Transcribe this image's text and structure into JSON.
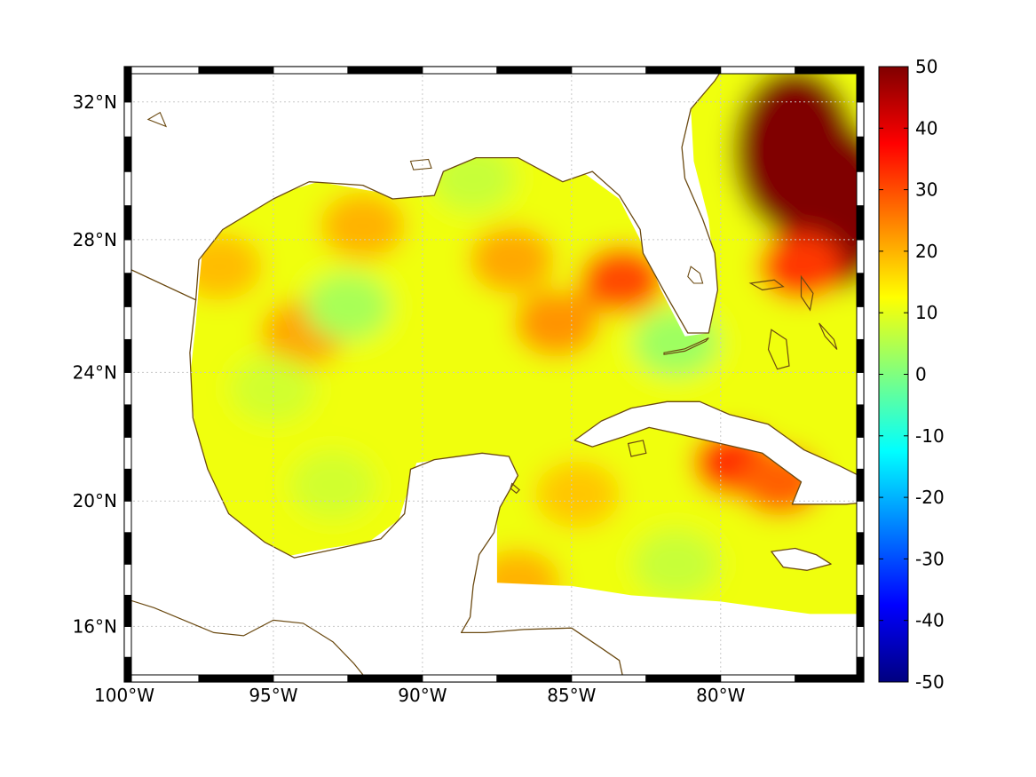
{
  "map": {
    "projection": "mercator",
    "lon_range": [
      -100,
      -75.2
    ],
    "lat_range": [
      14.2,
      33.0
    ],
    "grid": true,
    "frame_style": "black-white checker"
  },
  "axes": {
    "x_ticks": [
      {
        "value": -100,
        "label": "100°W"
      },
      {
        "value": -95,
        "label": "95°W"
      },
      {
        "value": -90,
        "label": "90°W"
      },
      {
        "value": -85,
        "label": "85°W"
      },
      {
        "value": -80,
        "label": "80°W"
      }
    ],
    "y_ticks": [
      {
        "value": 32,
        "label": "32°N"
      },
      {
        "value": 28,
        "label": "28°N"
      },
      {
        "value": 24,
        "label": "24°N"
      },
      {
        "value": 20,
        "label": "20°N"
      },
      {
        "value": 16,
        "label": "16°N"
      }
    ]
  },
  "colorbar": {
    "colormap": "jet",
    "min": -50,
    "max": 50,
    "ticks": [
      {
        "value": 50,
        "label": "50"
      },
      {
        "value": 40,
        "label": "40"
      },
      {
        "value": 30,
        "label": "30"
      },
      {
        "value": 20,
        "label": "20"
      },
      {
        "value": 10,
        "label": "10"
      },
      {
        "value": 0,
        "label": "0"
      },
      {
        "value": -10,
        "label": "-10"
      },
      {
        "value": -20,
        "label": "-20"
      },
      {
        "value": -30,
        "label": "-30"
      },
      {
        "value": -40,
        "label": "-40"
      },
      {
        "value": -50,
        "label": "-50"
      }
    ]
  },
  "colors": {
    "coastline": "#6b4a12",
    "background": "#ffffff",
    "grid": "#c8c8c8"
  },
  "field": {
    "base_value": 11,
    "anomalies": [
      {
        "name": "florida-current-high",
        "lon": -77.5,
        "lat": 30.6,
        "value": 60
      },
      {
        "name": "gulfstream-east",
        "lon": -76.2,
        "lat": 29.0,
        "value": 55
      },
      {
        "name": "bahamas-east",
        "lon": -77.3,
        "lat": 27.2,
        "value": 32
      },
      {
        "name": "loop-current-west-florida",
        "lon": -83.3,
        "lat": 26.8,
        "value": 30
      },
      {
        "name": "central-gulf-north",
        "lon": -87.0,
        "lat": 27.4,
        "value": 21
      },
      {
        "name": "central-gulf",
        "lon": -85.5,
        "lat": 25.5,
        "value": 23
      },
      {
        "name": "northwest-gulf",
        "lon": -92.0,
        "lat": 28.4,
        "value": 20
      },
      {
        "name": "western-gulf-band",
        "lon": -94.0,
        "lat": 25.2,
        "value": 21
      },
      {
        "name": "texas-shelf",
        "lon": -96.8,
        "lat": 27.2,
        "value": 19
      },
      {
        "name": "cuba-south-high",
        "lon": -79.5,
        "lat": 21.2,
        "value": 33
      },
      {
        "name": "cuba-east-high",
        "lon": -78.0,
        "lat": 20.6,
        "value": 28
      },
      {
        "name": "caribbean-west",
        "lon": -86.8,
        "lat": 17.4,
        "value": 20
      },
      {
        "name": "yucatan-channel",
        "lon": -84.8,
        "lat": 20.2,
        "value": 18
      },
      {
        "name": "west-gulf-low",
        "lon": -95.0,
        "lat": 23.5,
        "value": 8
      },
      {
        "name": "florida-bay-low",
        "lon": -81.5,
        "lat": 24.9,
        "value": 3
      },
      {
        "name": "central-low",
        "lon": -92.5,
        "lat": 26.0,
        "value": 4
      },
      {
        "name": "campeche-low",
        "lon": -93.0,
        "lat": 20.5,
        "value": 8
      },
      {
        "name": "northern-gulf-low",
        "lon": -88.3,
        "lat": 29.8,
        "value": 7
      },
      {
        "name": "caribbean-south-low",
        "lon": -81.5,
        "lat": 18.0,
        "value": 7
      }
    ]
  }
}
